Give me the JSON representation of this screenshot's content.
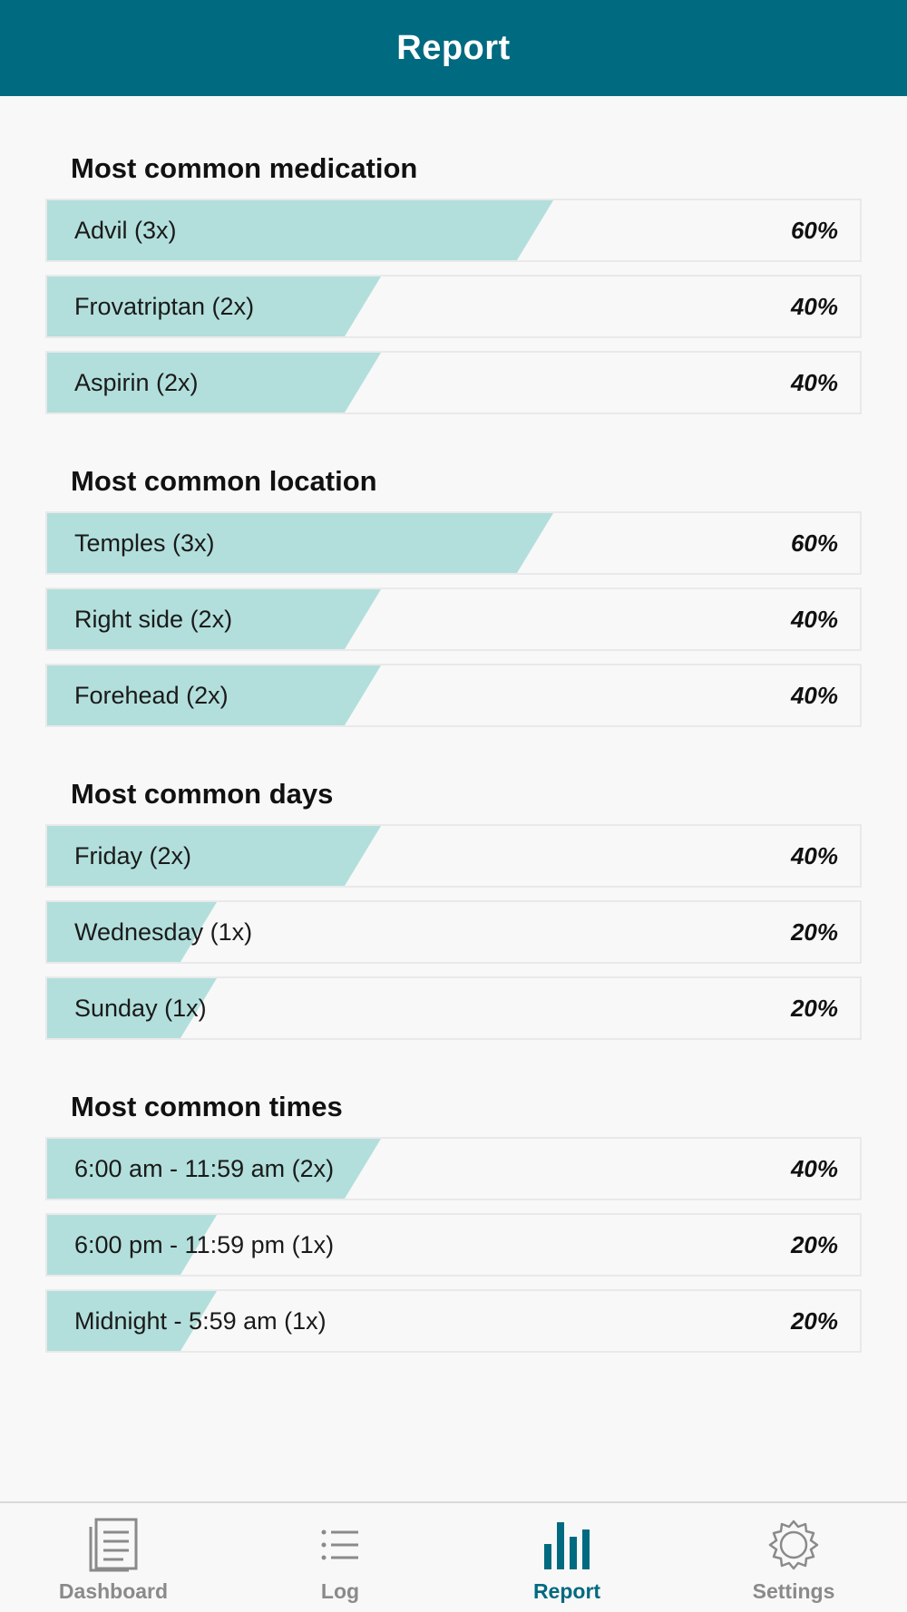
{
  "header": {
    "title": "Report"
  },
  "colors": {
    "header_bg": "#006a80",
    "bar_fill": "#b2dfdc",
    "active_tab": "#006a80",
    "inactive_tab": "#8a8a8a"
  },
  "sections": [
    {
      "title": "Most common medication",
      "rows": [
        {
          "label": "Advil (3x)",
          "percent": "60%",
          "value": 60
        },
        {
          "label": "Frovatriptan (2x)",
          "percent": "40%",
          "value": 40
        },
        {
          "label": "Aspirin (2x)",
          "percent": "40%",
          "value": 40
        }
      ]
    },
    {
      "title": "Most common location",
      "rows": [
        {
          "label": "Temples (3x)",
          "percent": "60%",
          "value": 60
        },
        {
          "label": "Right side (2x)",
          "percent": "40%",
          "value": 40
        },
        {
          "label": "Forehead (2x)",
          "percent": "40%",
          "value": 40
        }
      ]
    },
    {
      "title": "Most common days",
      "rows": [
        {
          "label": "Friday (2x)",
          "percent": "40%",
          "value": 40
        },
        {
          "label": "Wednesday (1x)",
          "percent": "20%",
          "value": 20
        },
        {
          "label": "Sunday (1x)",
          "percent": "20%",
          "value": 20
        }
      ]
    },
    {
      "title": "Most common times",
      "rows": [
        {
          "label": "6:00 am - 11:59 am (2x)",
          "percent": "40%",
          "value": 40
        },
        {
          "label": "6:00 pm - 11:59 pm (1x)",
          "percent": "20%",
          "value": 20
        },
        {
          "label": "Midnight - 5:59 am (1x)",
          "percent": "20%",
          "value": 20
        }
      ]
    }
  ],
  "tabs": [
    {
      "label": "Dashboard",
      "icon": "dashboard-icon",
      "active": false
    },
    {
      "label": "Log",
      "icon": "list-icon",
      "active": false
    },
    {
      "label": "Report",
      "icon": "bar-chart-icon",
      "active": true
    },
    {
      "label": "Settings",
      "icon": "gear-icon",
      "active": false
    }
  ]
}
